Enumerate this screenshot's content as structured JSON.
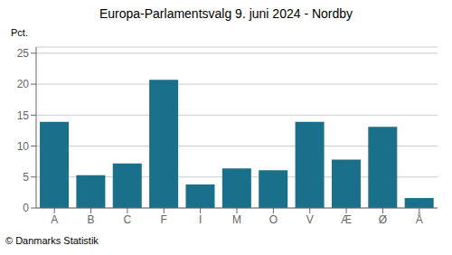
{
  "chart_data": {
    "type": "bar",
    "title": "Europa-Parlamentsvalg 9. juni 2024 - Nordby",
    "categories": [
      "A",
      "B",
      "C",
      "F",
      "I",
      "M",
      "O",
      "V",
      "Æ",
      "Ø",
      "Å"
    ],
    "values": [
      13.9,
      5.3,
      7.2,
      20.7,
      3.8,
      6.4,
      6.1,
      13.9,
      7.8,
      13.1,
      1.6
    ],
    "color": "#1a6f8a",
    "ylabel": "Pct.",
    "ylim": [
      0,
      26
    ],
    "yticks": [
      0,
      5,
      10,
      15,
      20,
      25
    ],
    "grid": true,
    "annotations": [
      "© Danmarks Statistik"
    ]
  }
}
